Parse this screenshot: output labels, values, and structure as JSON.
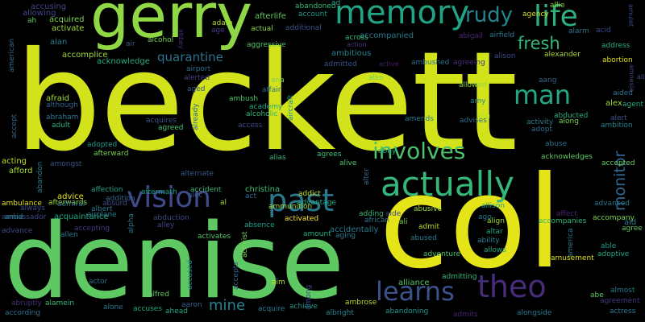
{
  "words": [
    {
      "text": "beckett",
      "color": "#d2e21b"
    },
    {
      "text": "col",
      "color": "#e5e419"
    },
    {
      "text": "denise",
      "color": "#5ec962"
    },
    {
      "text": "gerry",
      "color": "#8fd744"
    },
    {
      "text": "memory",
      "color": "#20a486"
    },
    {
      "text": "vision",
      "color": "#3e4a89"
    },
    {
      "text": "actually",
      "color": "#35b779"
    },
    {
      "text": "past",
      "color": "#2a788e"
    },
    {
      "text": "theo",
      "color": "#472c7a"
    },
    {
      "text": "learns",
      "color": "#3b528b"
    },
    {
      "text": "involves",
      "color": "#4ac16d"
    },
    {
      "text": "man",
      "color": "#22a884"
    },
    {
      "text": "life",
      "color": "#2cb17e"
    },
    {
      "text": "rudy",
      "color": "#25848e"
    },
    {
      "text": "fresh",
      "color": "#34b679"
    },
    {
      "text": "quarantine",
      "color": "#2c718e"
    },
    {
      "text": "monitor",
      "color": "#31668e"
    },
    {
      "text": "mine",
      "color": "#26828e"
    },
    {
      "text": "accusing",
      "color": "#414487"
    },
    {
      "text": "allowing",
      "color": "#3e4989"
    },
    {
      "text": "ah",
      "color": "#5ec962"
    },
    {
      "text": "acquired",
      "color": "#7ad151"
    },
    {
      "text": "activate",
      "color": "#9fda3a"
    },
    {
      "text": "alan",
      "color": "#2a788e"
    },
    {
      "text": "accomplice",
      "color": "#a2da37"
    },
    {
      "text": "american",
      "color": "#31688e"
    },
    {
      "text": "acknowledge",
      "color": "#27ad81"
    },
    {
      "text": "alcohol",
      "color": "#75d054"
    },
    {
      "text": "air",
      "color": "#3b528b"
    },
    {
      "text": "abbey",
      "color": "#472d7b"
    },
    {
      "text": "age",
      "color": "#443983"
    },
    {
      "text": "adam",
      "color": "#b5de2b"
    },
    {
      "text": "actual",
      "color": "#8bd646"
    },
    {
      "text": "aggressive",
      "color": "#54c568"
    },
    {
      "text": "additional",
      "color": "#3b528b"
    },
    {
      "text": "account",
      "color": "#1f958b"
    },
    {
      "text": "abandoned",
      "color": "#35b779"
    },
    {
      "text": "afterlife",
      "color": "#5ec962"
    },
    {
      "text": "ad",
      "color": "#1f9a8a"
    },
    {
      "text": "accompanied",
      "color": "#2a788e"
    },
    {
      "text": "across",
      "color": "#3aba76"
    },
    {
      "text": "action",
      "color": "#46337f"
    },
    {
      "text": "abigail",
      "color": "#482878"
    },
    {
      "text": "airfield",
      "color": "#29798e"
    },
    {
      "text": "allie",
      "color": "#95d840"
    },
    {
      "text": "agency",
      "color": "#d5e21a"
    },
    {
      "text": "amulet",
      "color": "#3e4a89"
    },
    {
      "text": "acid",
      "color": "#3e4989"
    },
    {
      "text": "alarm",
      "color": "#2d718e"
    },
    {
      "text": "address",
      "color": "#26ad81"
    },
    {
      "text": "ambitious",
      "color": "#26818e"
    },
    {
      "text": "admitted",
      "color": "#3b528b"
    },
    {
      "text": "active",
      "color": "#481f70"
    },
    {
      "text": "ambushed",
      "color": "#2e6e8e"
    },
    {
      "text": "agreeing",
      "color": "#46307e"
    },
    {
      "text": "alison",
      "color": "#3d4e8a"
    },
    {
      "text": "alexander",
      "color": "#a8db34"
    },
    {
      "text": "abortion",
      "color": "#dde318"
    },
    {
      "text": "amnesia",
      "color": "#3e4989"
    },
    {
      "text": "allow",
      "color": "#3e4989"
    },
    {
      "text": "airport",
      "color": "#2c718e"
    },
    {
      "text": "alerted",
      "color": "#424086"
    },
    {
      "text": "aged",
      "color": "#38588c"
    },
    {
      "text": "ana",
      "color": "#7fd34e"
    },
    {
      "text": "affair",
      "color": "#2c718e"
    },
    {
      "text": "aircraft",
      "color": "#21918c"
    },
    {
      "text": "also",
      "color": "#6ccd5a"
    },
    {
      "text": "allowed",
      "color": "#90d743"
    },
    {
      "text": "aang",
      "color": "#32658e"
    },
    {
      "text": "aided",
      "color": "#2b748e"
    },
    {
      "text": "alex",
      "color": "#9bd93c"
    },
    {
      "text": "agent",
      "color": "#29af7f"
    },
    {
      "text": "afraid",
      "color": "#a5db36"
    },
    {
      "text": "although",
      "color": "#35608d"
    },
    {
      "text": "ambush",
      "color": "#50c46a"
    },
    {
      "text": "academy",
      "color": "#21a685"
    },
    {
      "text": "alcoholic",
      "color": "#31b57b"
    },
    {
      "text": "access",
      "color": "#3e4989"
    },
    {
      "text": "already",
      "color": "#2f6c8e"
    },
    {
      "text": "alien",
      "color": "#453882"
    },
    {
      "text": "amy",
      "color": "#24878e"
    },
    {
      "text": "abu",
      "color": "#b8de29"
    },
    {
      "text": "abducted",
      "color": "#27ad81"
    },
    {
      "text": "alongwith",
      "color": "#4ac16d"
    },
    {
      "text": "along",
      "color": "#7ad151"
    },
    {
      "text": "ambition",
      "color": "#26828e"
    },
    {
      "text": "alert",
      "color": "#3c508b"
    },
    {
      "text": "amends",
      "color": "#27808e"
    },
    {
      "text": "advises",
      "color": "#2e6e8e"
    },
    {
      "text": "activity",
      "color": "#27808e"
    },
    {
      "text": "adopt",
      "color": "#2f6b8e"
    },
    {
      "text": "accept",
      "color": "#33638d"
    },
    {
      "text": "abraham",
      "color": "#2a788e"
    },
    {
      "text": "adult",
      "color": "#2db27d"
    },
    {
      "text": "acquires",
      "color": "#39558c"
    },
    {
      "text": "agreed",
      "color": "#4ac16d"
    },
    {
      "text": "abuse",
      "color": "#2d718e"
    },
    {
      "text": "acknowledges",
      "color": "#5ec962"
    },
    {
      "text": "accepted",
      "color": "#63cb5f"
    },
    {
      "text": "acting",
      "color": "#bddf26"
    },
    {
      "text": "afford",
      "color": "#aadc32"
    },
    {
      "text": "abandon",
      "color": "#2a788e"
    },
    {
      "text": "amongst",
      "color": "#3b528b"
    },
    {
      "text": "adopted",
      "color": "#1e9b8a"
    },
    {
      "text": "afterward",
      "color": "#75d054"
    },
    {
      "text": "alternate",
      "color": "#38588c"
    },
    {
      "text": "alias",
      "color": "#37b878"
    },
    {
      "text": "agrees",
      "color": "#3bbb75"
    },
    {
      "text": "abby",
      "color": "#25ab82"
    },
    {
      "text": "alter",
      "color": "#31688e"
    },
    {
      "text": "alive",
      "color": "#4ec36b"
    },
    {
      "text": "advice",
      "color": "#e5e419"
    },
    {
      "text": "afterwards",
      "color": "#97d83f"
    },
    {
      "text": "affection",
      "color": "#20a386"
    },
    {
      "text": "addition",
      "color": "#32658e"
    },
    {
      "text": "aftermath",
      "color": "#1fa187"
    },
    {
      "text": "accident",
      "color": "#35b779"
    },
    {
      "text": "christina",
      "color": "#40bd72"
    },
    {
      "text": "addict",
      "color": "#b8de29"
    },
    {
      "text": "advantage",
      "color": "#22a884"
    },
    {
      "text": "adding",
      "color": "#39b977"
    },
    {
      "text": "aide",
      "color": "#3e4989"
    },
    {
      "text": "african",
      "color": "#2b758e"
    },
    {
      "text": "abusive",
      "color": "#a0da39"
    },
    {
      "text": "allison",
      "color": "#1fa088"
    },
    {
      "text": "affect",
      "color": "#482475"
    },
    {
      "text": "accompanies",
      "color": "#32b67a"
    },
    {
      "text": "advanced",
      "color": "#2b758e"
    },
    {
      "text": "ambulance",
      "color": "#e5e419"
    },
    {
      "text": "albert",
      "color": "#2a788e"
    },
    {
      "text": "alec",
      "color": "#355f8d"
    },
    {
      "text": "act",
      "color": "#2e6e8e"
    },
    {
      "text": "ammunition",
      "color": "#a2da37"
    },
    {
      "text": "ambassador",
      "color": "#3f4788"
    },
    {
      "text": "acquaintance",
      "color": "#21a685"
    },
    {
      "text": "always",
      "color": "#3e4989"
    },
    {
      "text": "admiral",
      "color": "#2e6e8e"
    },
    {
      "text": "absurd",
      "color": "#3e4989"
    },
    {
      "text": "ago",
      "color": "#2a788e"
    },
    {
      "text": "amid",
      "color": "#25858e"
    },
    {
      "text": "airplane",
      "color": "#29798e"
    },
    {
      "text": "alpha",
      "color": "#2c728e"
    },
    {
      "text": "alley",
      "color": "#3f4788"
    },
    {
      "text": "activated",
      "color": "#fde725"
    },
    {
      "text": "absence",
      "color": "#1fa187"
    },
    {
      "text": "advance",
      "color": "#3e4989"
    },
    {
      "text": "allen",
      "color": "#2a788e"
    },
    {
      "text": "accepting",
      "color": "#46337f"
    },
    {
      "text": "abduction",
      "color": "#3e4989"
    },
    {
      "text": "accidentally",
      "color": "#2a788e"
    },
    {
      "text": "admit",
      "color": "#b8de29"
    },
    {
      "text": "align",
      "color": "#a2da37"
    },
    {
      "text": "accompany",
      "color": "#7ad151"
    },
    {
      "text": "agree",
      "color": "#5ec962"
    },
    {
      "text": "aging",
      "color": "#2a788e"
    },
    {
      "text": "activates",
      "color": "#54c568"
    },
    {
      "text": "activist",
      "color": "#7ad151"
    },
    {
      "text": "amount",
      "color": "#29af7f"
    },
    {
      "text": "abused",
      "color": "#2a788e"
    },
    {
      "text": "altar",
      "color": "#20a386"
    },
    {
      "text": "ability",
      "color": "#277f8e"
    },
    {
      "text": "america",
      "color": "#2a788e"
    },
    {
      "text": "able",
      "color": "#1f9a8a"
    },
    {
      "text": "adoptive",
      "color": "#21a685"
    },
    {
      "text": "aid",
      "color": "#2a788e"
    },
    {
      "text": "alienate",
      "color": "#482878"
    },
    {
      "text": "allows",
      "color": "#21a685"
    },
    {
      "text": "adventure",
      "color": "#4ac16d"
    },
    {
      "text": "amusement",
      "color": "#d8e219"
    },
    {
      "text": "admitting",
      "color": "#35b779"
    },
    {
      "text": "alliance",
      "color": "#54c568"
    },
    {
      "text": "actor",
      "color": "#2d708e"
    },
    {
      "text": "alfred",
      "color": "#5ec962"
    },
    {
      "text": "accused",
      "color": "#238a8d"
    },
    {
      "text": "accepts",
      "color": "#33638d"
    },
    {
      "text": "aim",
      "color": "#b5de2b"
    },
    {
      "text": "among",
      "color": "#3e4989"
    },
    {
      "text": "abruptly",
      "color": "#472c7a"
    },
    {
      "text": "alamein",
      "color": "#35b779"
    },
    {
      "text": "alone",
      "color": "#2c728e"
    },
    {
      "text": "accuses",
      "color": "#20a486"
    },
    {
      "text": "aaron",
      "color": "#33638d"
    },
    {
      "text": "ahead",
      "color": "#22a884"
    },
    {
      "text": "acquire",
      "color": "#2a788e"
    },
    {
      "text": "achieve",
      "color": "#1f968b"
    },
    {
      "text": "ambrose",
      "color": "#b5de2b"
    },
    {
      "text": "according",
      "color": "#2d708e"
    },
    {
      "text": "albright",
      "color": "#24868e"
    },
    {
      "text": "abandoning",
      "color": "#1f988b"
    },
    {
      "text": "admits",
      "color": "#482475"
    },
    {
      "text": "alongside",
      "color": "#2a788e"
    },
    {
      "text": "almost",
      "color": "#2a788e"
    },
    {
      "text": "abe",
      "color": "#5ec962"
    },
    {
      "text": "agreement",
      "color": "#443983"
    },
    {
      "text": "actress",
      "color": "#2a788e"
    },
    {
      "text": "al",
      "color": "#a2da37"
    },
    {
      "text": "ali",
      "color": "#7ad151"
    },
    {
      "text": "age2",
      "color": "#2a788e"
    }
  ]
}
